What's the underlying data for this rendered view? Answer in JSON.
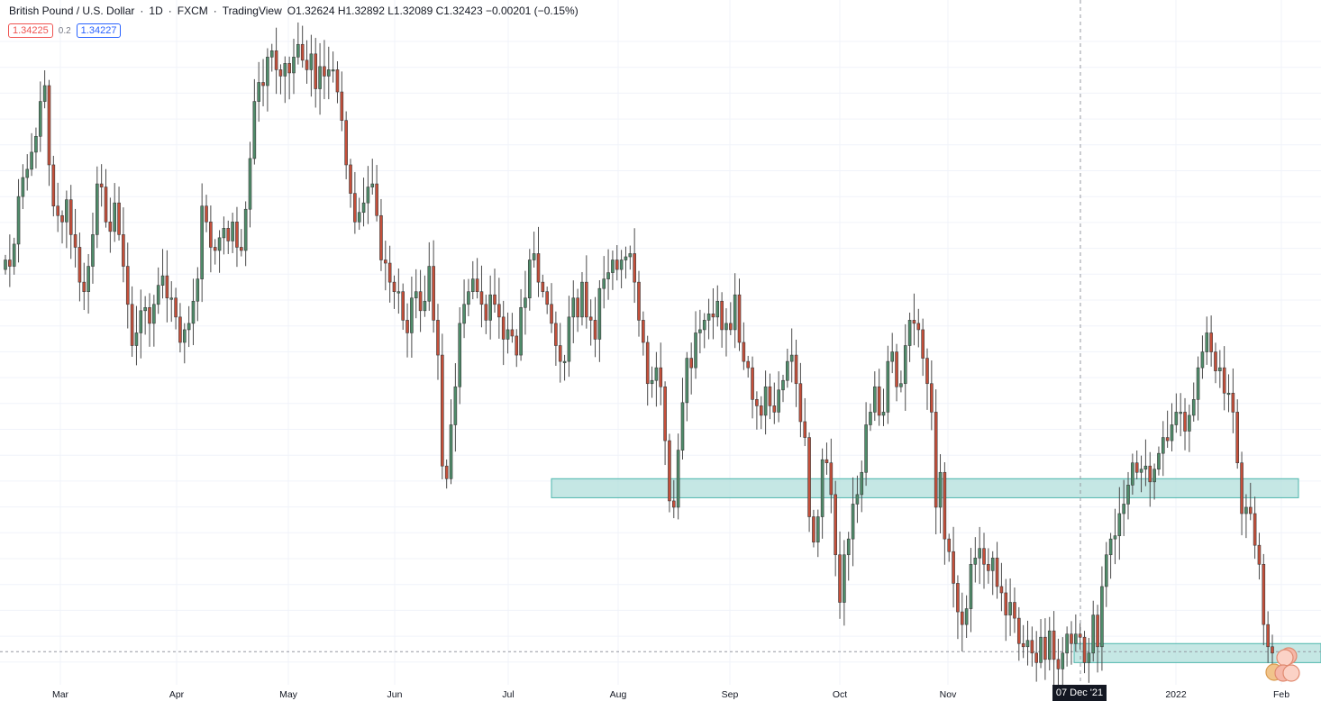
{
  "header": {
    "symbol": "British Pound / U.S. Dollar",
    "interval": "1D",
    "broker": "FXCM",
    "source": "TradingView",
    "ohlc": "O1.32624 H1.32892 L1.32089 C1.32423 −0.00201 (−0.15%)"
  },
  "trade": {
    "sell_price": "1.34225",
    "spread": "0.2",
    "buy_price": "1.34227"
  },
  "crosshair_date": "07 Dec '21",
  "colors": {
    "up": "#4f8c6a",
    "down": "#c44f3a",
    "zone_fill": "#b2dfdb",
    "zone_stroke": "#4db6ac",
    "grid": "#f0f3fa"
  },
  "chart_data": {
    "type": "candlestick",
    "x_tick_labels": [
      "Mar",
      "Apr",
      "May",
      "Jun",
      "Jul",
      "Aug",
      "Sep",
      "Oct",
      "Nov",
      "2022",
      "Feb"
    ],
    "ylim": [
      1.319,
      1.427
    ],
    "last_price": 1.32423,
    "zones": [
      {
        "from": 1.3515,
        "to": 1.3485,
        "start": "Jul 13, 2021",
        "end": "Jan 31, 2022"
      },
      {
        "from": 1.3255,
        "to": 1.3225,
        "start": "Dec 7, 2021",
        "end": "Feb 3, 2022"
      }
    ],
    "candles_close": [
      1.386,
      1.385,
      1.3885,
      1.396,
      1.399,
      1.4003,
      1.403,
      1.4055,
      1.411,
      1.4135,
      1.401,
      1.3945,
      1.393,
      1.392,
      1.3955,
      1.39,
      1.388,
      1.3825,
      1.381,
      1.385,
      1.39,
      1.398,
      1.3975,
      1.392,
      1.3905,
      1.395,
      1.39,
      1.385,
      1.379,
      1.3725,
      1.3745,
      1.378,
      1.3785,
      1.376,
      1.379,
      1.382,
      1.3835,
      1.38,
      1.38,
      1.377,
      1.373,
      1.375,
      1.376,
      1.3795,
      1.383,
      1.3945,
      1.392,
      1.388,
      1.3875,
      1.3895,
      1.391,
      1.389,
      1.392,
      1.388,
      1.3875,
      1.394,
      1.402,
      1.411,
      1.414,
      1.4135,
      1.418,
      1.419,
      1.416,
      1.415,
      1.417,
      1.4155,
      1.418,
      1.42,
      1.4175,
      1.416,
      1.4185,
      1.413,
      1.4165,
      1.415,
      1.416,
      1.416,
      1.4125,
      1.408,
      1.401,
      1.3965,
      1.392,
      1.3935,
      1.395,
      1.3975,
      1.398,
      1.393,
      1.386,
      1.3855,
      1.3825,
      1.381,
      1.381,
      1.3765,
      1.3745,
      1.38,
      1.381,
      1.378,
      1.3795,
      1.385,
      1.3765,
      1.371,
      1.3535,
      1.3515,
      1.36,
      1.366,
      1.376,
      1.379,
      1.381,
      1.383,
      1.381,
      1.379,
      1.3765,
      1.3805,
      1.379,
      1.377,
      1.3735,
      1.375,
      1.374,
      1.371,
      1.3785,
      1.38,
      1.386,
      1.387,
      1.3825,
      1.381,
      1.379,
      1.376,
      1.3725,
      1.37,
      1.37,
      1.377,
      1.38,
      1.377,
      1.3825,
      1.377,
      1.3765,
      1.3735,
      1.3815,
      1.383,
      1.384,
      1.386,
      1.3845,
      1.386,
      1.3865,
      1.387,
      1.3825,
      1.3765,
      1.373,
      1.3665,
      1.367,
      1.369,
      1.366,
      1.3575,
      1.348,
      1.347,
      1.356,
      1.3635,
      1.3705,
      1.369,
      1.3745,
      1.375,
      1.3765,
      1.3775,
      1.377,
      1.3795,
      1.375,
      1.376,
      1.375,
      1.3805,
      1.373,
      1.37,
      1.369,
      1.364,
      1.363,
      1.3615,
      1.366,
      1.363,
      1.362,
      1.3655,
      1.367,
      1.37,
      1.371,
      1.3665,
      1.3605,
      1.358,
      1.3455,
      1.3415,
      1.3455,
      1.3545,
      1.354,
      1.349,
      1.3395,
      1.332,
      1.3395,
      1.342,
      1.3475,
      1.349,
      1.3525,
      1.36,
      1.362,
      1.366,
      1.3615,
      1.362,
      1.37,
      1.3715,
      1.366,
      1.3665,
      1.3725,
      1.3765,
      1.376,
      1.375,
      1.3705,
      1.3665,
      1.362,
      1.347,
      1.3525,
      1.342,
      1.34,
      1.335,
      1.3305,
      1.3285,
      1.331,
      1.338,
      1.339,
      1.3405,
      1.338,
      1.337,
      1.339,
      1.3345,
      1.3335,
      1.33,
      1.332,
      1.3295,
      1.3255,
      1.325,
      1.326,
      1.324,
      1.3225,
      1.3265,
      1.323,
      1.3275,
      1.323,
      1.3215,
      1.324,
      1.327,
      1.3255,
      1.327,
      1.3265,
      1.3225,
      1.324,
      1.33,
      1.325,
      1.3345,
      1.3395,
      1.342,
      1.3425,
      1.346,
      1.3475,
      1.3505,
      1.354,
      1.3525,
      1.353,
      1.3535,
      1.351,
      1.353,
      1.3555,
      1.358,
      1.3575,
      1.36,
      1.362,
      1.362,
      1.359,
      1.3615,
      1.364,
      1.369,
      1.3715,
      1.3745,
      1.3715,
      1.3685,
      1.369,
      1.365,
      1.365,
      1.362,
      1.354,
      1.346,
      1.347,
      1.346,
      1.341,
      1.338,
      1.3285,
      1.325,
      1.324
    ]
  }
}
